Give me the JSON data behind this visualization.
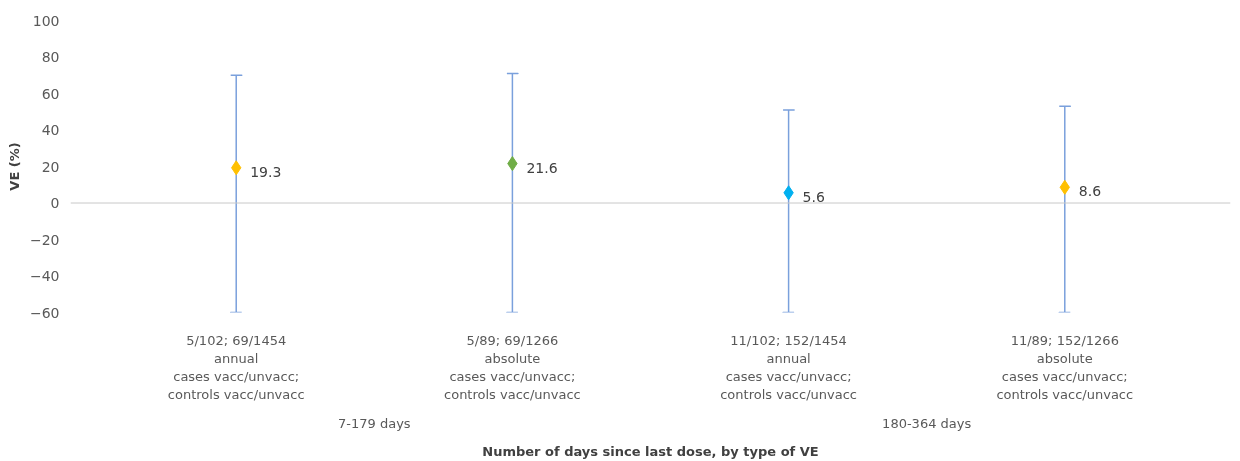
{
  "chart_data": {
    "type": "scatter",
    "xlabel": "Number of days since last dose, by type of VE",
    "ylabel": "VE (%)",
    "categories": [
      "5/102; 69/1454\nannual\ncases vacc/unvacc;\ncontrols vacc/unvacc",
      "5/89; 69/1266\nabsolute\ncases vacc/unvacc;\ncontrols vacc/unvacc",
      "11/102; 152/1454\nannual\ncases vacc/unvacc;\ncontrols vacc/unvacc",
      "11/89; 152/1266\nabsolute\ncases vacc/unvacc;\ncontrols vacc/unvacc"
    ],
    "values": [
      19.3,
      21.6,
      5.6,
      8.6
    ],
    "colors": [
      "#ffc000",
      "#70ad47",
      "#00b0f0",
      "#ffc000"
    ],
    "errors": [
      [
        -60,
        70
      ],
      [
        -60,
        71
      ],
      [
        -60,
        51
      ],
      [
        -60,
        53
      ]
    ],
    "ylim": [
      -60,
      100
    ],
    "yticks": [
      -60,
      -40,
      -20,
      0,
      20,
      40,
      60,
      80,
      100
    ],
    "marker": "diamond",
    "data_labels": true,
    "grid": false,
    "ref_lines": [
      {
        "axis": "y",
        "value": 0,
        "color": "#c8c8c8"
      }
    ],
    "annotations": [
      "7-179 days",
      "180-364 days"
    ]
  }
}
